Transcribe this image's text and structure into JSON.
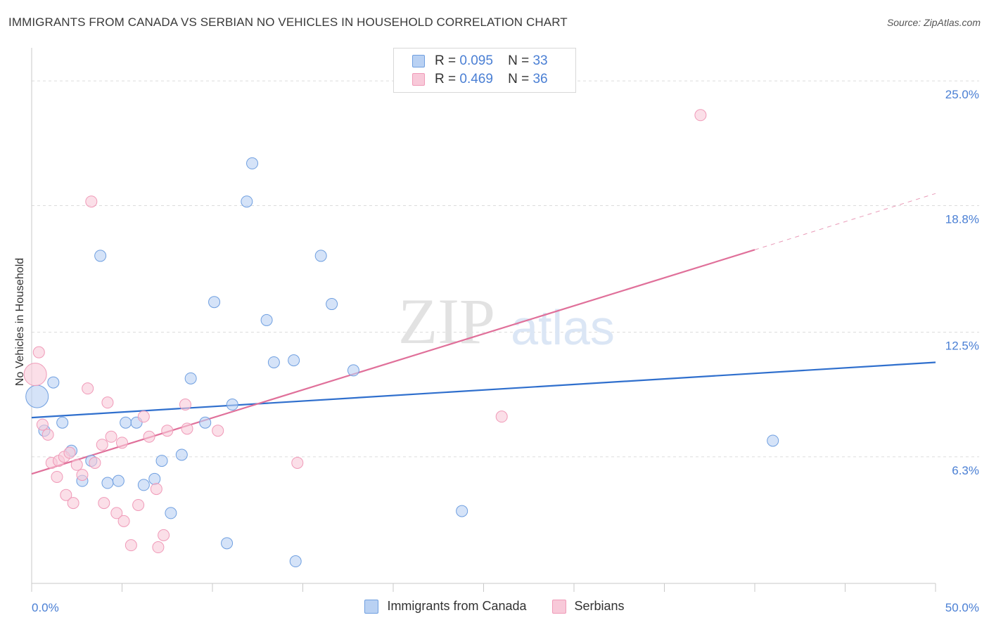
{
  "chart_data": {
    "type": "scatter",
    "title": "IMMIGRANTS FROM CANADA VS SERBIAN NO VEHICLES IN HOUSEHOLD CORRELATION CHART",
    "source": "Source: ZipAtlas.com",
    "xlabel": "",
    "ylabel": "No Vehicles in Household",
    "xlim": [
      0,
      50
    ],
    "ylim": [
      0,
      26.3
    ],
    "x_tick_labels": [
      "0.0%",
      "50.0%"
    ],
    "y_ticks": [
      6.3,
      12.5,
      18.8,
      25.0
    ],
    "y_tick_labels": [
      "6.3%",
      "12.5%",
      "18.8%",
      "25.0%"
    ],
    "watermark": {
      "zip": "ZIP",
      "atlas": "atlas"
    },
    "legend": [
      {
        "r_label": "R =",
        "r_value": "0.095",
        "n_label": "N =",
        "n_value": "33"
      },
      {
        "r_label": "R =",
        "r_value": "0.469",
        "n_label": "N =",
        "n_value": "36"
      }
    ],
    "series": [
      {
        "name": "Immigrants from Canada",
        "color": "#6f9fe0",
        "fill": "#b9d1f3",
        "line_color": "#2f6fcd",
        "trend": {
          "x0": 0,
          "y0": 8.25,
          "x1": 50,
          "y1": 11.0
        },
        "points": [
          {
            "x": 0.3,
            "y": 9.3,
            "big": true
          },
          {
            "x": 0.7,
            "y": 7.6
          },
          {
            "x": 1.2,
            "y": 10.0
          },
          {
            "x": 1.7,
            "y": 8.0
          },
          {
            "x": 2.2,
            "y": 6.6
          },
          {
            "x": 2.8,
            "y": 5.1
          },
          {
            "x": 3.3,
            "y": 6.1
          },
          {
            "x": 3.8,
            "y": 16.3
          },
          {
            "x": 4.2,
            "y": 5.0
          },
          {
            "x": 4.8,
            "y": 5.1
          },
          {
            "x": 5.2,
            "y": 8.0
          },
          {
            "x": 5.8,
            "y": 8.0
          },
          {
            "x": 6.2,
            "y": 4.9
          },
          {
            "x": 6.8,
            "y": 5.2
          },
          {
            "x": 7.2,
            "y": 6.1
          },
          {
            "x": 7.7,
            "y": 3.5
          },
          {
            "x": 8.3,
            "y": 6.4
          },
          {
            "x": 8.8,
            "y": 10.2
          },
          {
            "x": 9.6,
            "y": 8.0
          },
          {
            "x": 10.1,
            "y": 14.0
          },
          {
            "x": 10.8,
            "y": 2.0
          },
          {
            "x": 11.1,
            "y": 8.9
          },
          {
            "x": 11.9,
            "y": 19.0
          },
          {
            "x": 12.2,
            "y": 20.9
          },
          {
            "x": 13.0,
            "y": 13.1
          },
          {
            "x": 13.4,
            "y": 11.0
          },
          {
            "x": 14.5,
            "y": 11.1
          },
          {
            "x": 14.6,
            "y": 1.1
          },
          {
            "x": 16.0,
            "y": 16.3
          },
          {
            "x": 16.6,
            "y": 13.9
          },
          {
            "x": 17.8,
            "y": 10.6
          },
          {
            "x": 23.8,
            "y": 3.6
          },
          {
            "x": 41.0,
            "y": 7.1
          }
        ]
      },
      {
        "name": "Serbians",
        "color": "#f09ab8",
        "fill": "#f8c9d9",
        "line_color": "#e0709a",
        "trend": {
          "x0": 0,
          "y0": 5.45,
          "x1": 40,
          "y1": 16.6
        },
        "trend_dashed": {
          "x0": 40,
          "y0": 16.6,
          "x1": 50,
          "y1": 19.4
        },
        "points": [
          {
            "x": 0.2,
            "y": 10.4,
            "big": true
          },
          {
            "x": 0.4,
            "y": 11.5
          },
          {
            "x": 0.6,
            "y": 7.9
          },
          {
            "x": 0.9,
            "y": 7.4
          },
          {
            "x": 1.1,
            "y": 6.0
          },
          {
            "x": 1.4,
            "y": 5.3
          },
          {
            "x": 1.5,
            "y": 6.1
          },
          {
            "x": 1.8,
            "y": 6.3
          },
          {
            "x": 1.9,
            "y": 4.4
          },
          {
            "x": 2.1,
            "y": 6.5
          },
          {
            "x": 2.3,
            "y": 4.0
          },
          {
            "x": 2.5,
            "y": 5.9
          },
          {
            "x": 2.8,
            "y": 5.4
          },
          {
            "x": 3.1,
            "y": 9.7
          },
          {
            "x": 3.3,
            "y": 19.0
          },
          {
            "x": 3.5,
            "y": 6.0
          },
          {
            "x": 3.9,
            "y": 6.9
          },
          {
            "x": 4.0,
            "y": 4.0
          },
          {
            "x": 4.2,
            "y": 9.0
          },
          {
            "x": 4.4,
            "y": 7.3
          },
          {
            "x": 4.7,
            "y": 3.5
          },
          {
            "x": 5.0,
            "y": 7.0
          },
          {
            "x": 5.1,
            "y": 3.1
          },
          {
            "x": 5.5,
            "y": 1.9
          },
          {
            "x": 5.9,
            "y": 3.9
          },
          {
            "x": 6.2,
            "y": 8.3
          },
          {
            "x": 6.5,
            "y": 7.3
          },
          {
            "x": 6.9,
            "y": 4.7
          },
          {
            "x": 7.0,
            "y": 1.8
          },
          {
            "x": 7.3,
            "y": 2.4
          },
          {
            "x": 7.5,
            "y": 7.6
          },
          {
            "x": 8.5,
            "y": 8.9
          },
          {
            "x": 8.6,
            "y": 7.7
          },
          {
            "x": 10.3,
            "y": 7.6
          },
          {
            "x": 14.7,
            "y": 6.0
          },
          {
            "x": 26.0,
            "y": 8.3
          },
          {
            "x": 37.0,
            "y": 23.3
          }
        ]
      }
    ]
  }
}
